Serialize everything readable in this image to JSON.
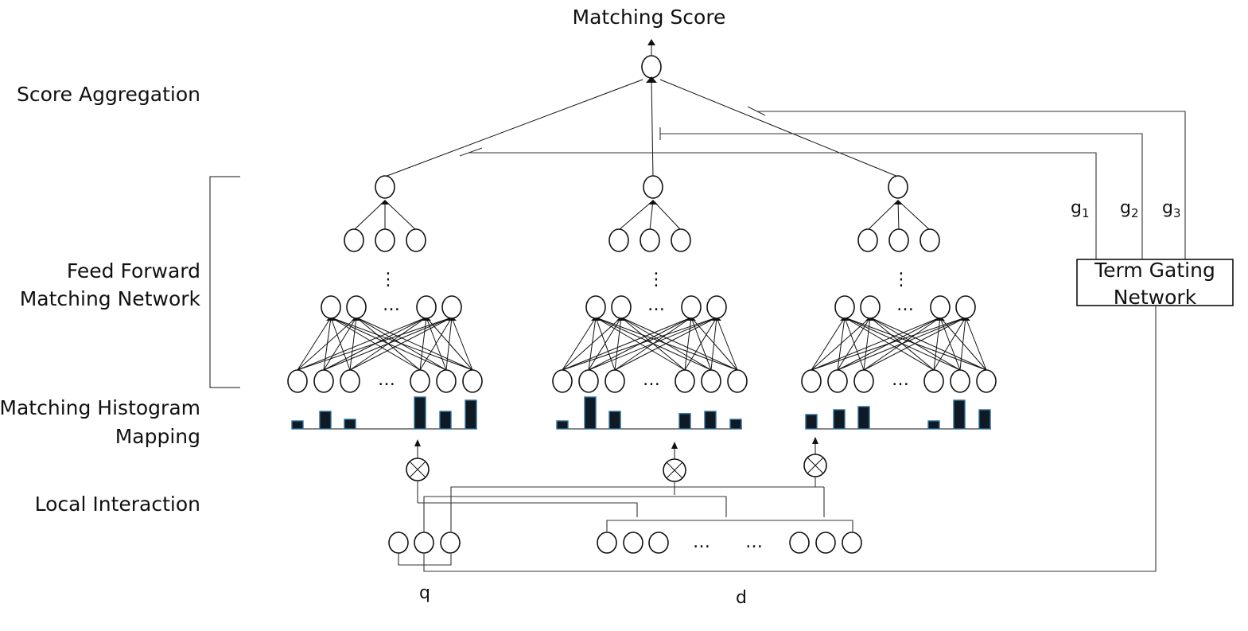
{
  "title": "Matching Score",
  "layer_labels": {
    "score_aggregation": "Score Aggregation",
    "feed_forward_line1": "Feed Forward",
    "feed_forward_line2": "Matching Network",
    "histogram_line1": "Matching Histogram",
    "histogram_line2": "Mapping",
    "local_interaction": "Local Interaction"
  },
  "gating": {
    "box_line1": "Term Gating",
    "box_line2": "Network",
    "gates": [
      {
        "base": "g",
        "sub": "1"
      },
      {
        "base": "g",
        "sub": "2"
      },
      {
        "base": "g",
        "sub": "3"
      }
    ]
  },
  "inputs": {
    "query_label": "q",
    "document_label": "d"
  },
  "ellipsis": {
    "horizontal": "…",
    "vertical": "⋮"
  },
  "histogram_levels": [
    [
      0.25,
      0.55,
      0.3,
      1.0,
      0.55,
      0.9
    ],
    [
      0.25,
      1.0,
      0.55,
      0.48,
      0.55,
      0.3
    ],
    [
      0.45,
      0.6,
      0.7,
      0.25,
      0.9,
      0.6
    ]
  ],
  "colors": {
    "bar_fill": "#0f1a24",
    "bar_outline": "#2f6f9a",
    "lines": "#111111"
  },
  "icons": {
    "interaction_operator": "circled-times-icon"
  }
}
